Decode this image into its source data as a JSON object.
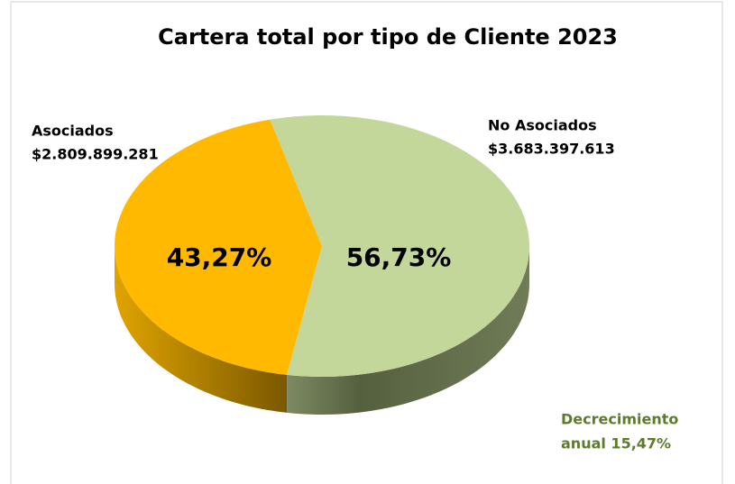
{
  "chart_data": {
    "type": "pie",
    "title": "Cartera total por tipo de Cliente 2023",
    "categories": [
      "Asociados",
      "No Asociados"
    ],
    "values": [
      43.27,
      56.73
    ],
    "value_labels": [
      "43,27%",
      "56,73%"
    ],
    "amounts": [
      2809899281,
      3683397613
    ],
    "amount_labels": [
      "$2.809.899.281",
      "$3.683.397.613"
    ],
    "colors": [
      "#FFB900",
      "#C4D79B"
    ],
    "annotation": [
      "Decrecimiento",
      "anual 15,47%"
    ],
    "annotation_color": "#5E7A2C"
  }
}
